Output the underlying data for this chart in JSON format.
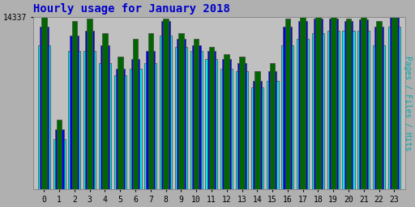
{
  "title": "Hourly usage for January 2018",
  "title_color": "#0000CC",
  "title_fontsize": 10,
  "ylabel_right": "Pages / Files / Hits",
  "ylabel_right_color": "#00AAAA",
  "ylim": [
    0,
    14337
  ],
  "ytick_label": "14337",
  "plot_bg_color": "#C0C0C0",
  "outer_bg": "#B0B0B0",
  "bar_width": 0.8,
  "hours": [
    0,
    1,
    2,
    3,
    4,
    5,
    6,
    7,
    8,
    9,
    10,
    11,
    12,
    13,
    14,
    15,
    16,
    17,
    18,
    19,
    20,
    21,
    22,
    23
  ],
  "hits": [
    12000,
    4200,
    11500,
    11500,
    10500,
    9500,
    10000,
    10500,
    12800,
    11800,
    11500,
    10800,
    10000,
    9800,
    8500,
    9000,
    12000,
    12500,
    13000,
    13200,
    13200,
    13200,
    12000,
    13500
  ],
  "files": [
    13500,
    5000,
    12800,
    13200,
    12000,
    10000,
    10800,
    11500,
    14000,
    12500,
    12000,
    11500,
    10800,
    10500,
    9000,
    9800,
    13500,
    14000,
    14200,
    14200,
    14000,
    14100,
    13500,
    14337
  ],
  "pages": [
    14337,
    5800,
    14000,
    14200,
    13000,
    11000,
    12500,
    13000,
    14200,
    13000,
    12500,
    11800,
    11200,
    11000,
    9800,
    10500,
    14200,
    14300,
    14337,
    14300,
    14200,
    14300,
    14000,
    14337
  ],
  "pages_color": "#006600",
  "files_color": "#0000EE",
  "hits_color": "#00EEEE",
  "edge_color": "#444444",
  "font_family": "monospace",
  "grid_color": "#AAAAAA"
}
